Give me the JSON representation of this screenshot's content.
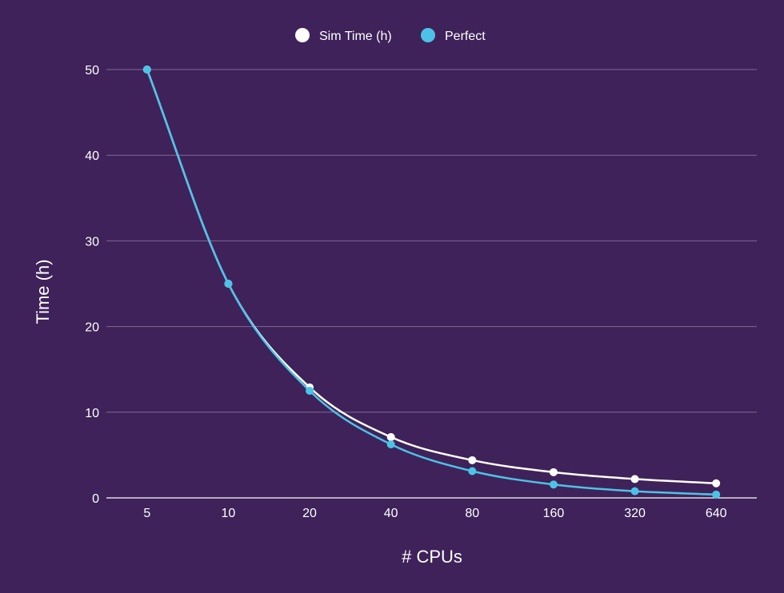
{
  "chart_data": {
    "type": "line",
    "categories": [
      "5",
      "10",
      "20",
      "40",
      "80",
      "160",
      "320",
      "640"
    ],
    "series": [
      {
        "name": "Sim Time (h)",
        "color": "#ffffff",
        "values": [
          50,
          25,
          12.9,
          7.1,
          4.4,
          3.0,
          2.2,
          1.7
        ]
      },
      {
        "name": "Perfect",
        "color": "#4cc3e6",
        "values": [
          50,
          25,
          12.5,
          6.25,
          3.125,
          1.5625,
          0.78125,
          0.390625
        ]
      }
    ],
    "title": "",
    "xlabel": "# CPUs",
    "ylabel": "Time (h)",
    "ylim": [
      0,
      50
    ],
    "yticks": [
      0,
      10,
      20,
      30,
      40,
      50
    ],
    "grid": true,
    "legend_position": "top-center",
    "background": "#3f2259",
    "grid_color": "#7e6a96"
  }
}
